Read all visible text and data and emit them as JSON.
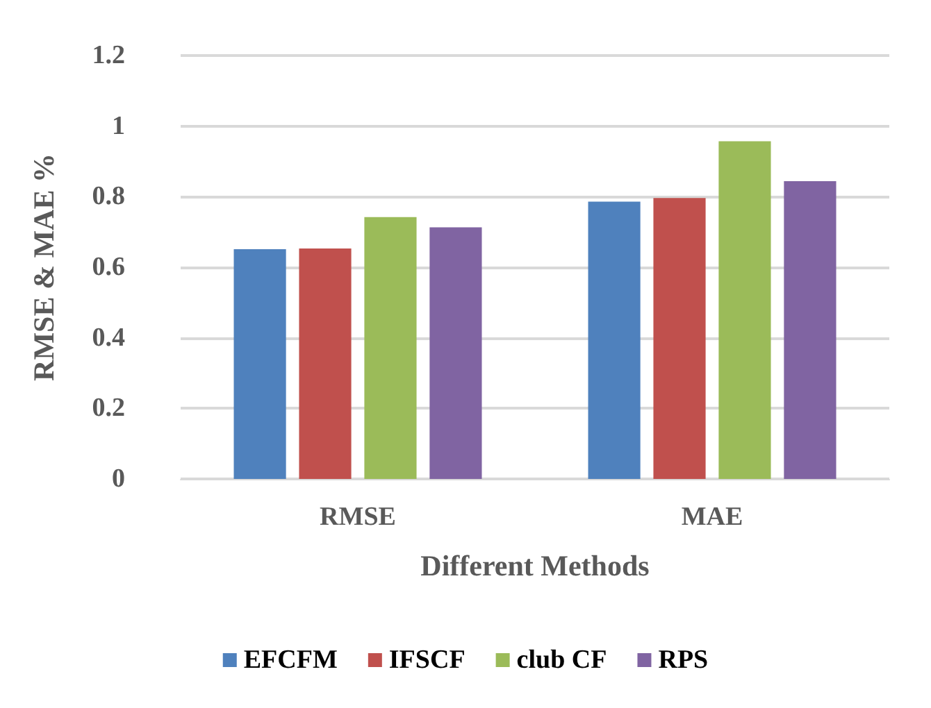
{
  "chart_data": {
    "type": "bar",
    "xlabel": "Different Methods",
    "ylabel": "RMSE & MAE %",
    "categories": [
      "RMSE",
      "MAE"
    ],
    "series": [
      {
        "name": "EFCFM",
        "color": "#4f81bd",
        "values": [
          0.651,
          0.786
        ]
      },
      {
        "name": "IFSCF",
        "color": "#c0504d",
        "values": [
          0.653,
          0.796
        ]
      },
      {
        "name": "club CF",
        "color": "#9bbb59",
        "values": [
          0.742,
          0.957
        ]
      },
      {
        "name": "RPS",
        "color": "#8064a2",
        "values": [
          0.713,
          0.844
        ]
      }
    ],
    "ylim": [
      0,
      1.2
    ],
    "yticks": [
      0,
      0.2,
      0.4,
      0.6,
      0.8,
      1,
      1.2
    ],
    "grid": "y",
    "legend": "bottom"
  }
}
